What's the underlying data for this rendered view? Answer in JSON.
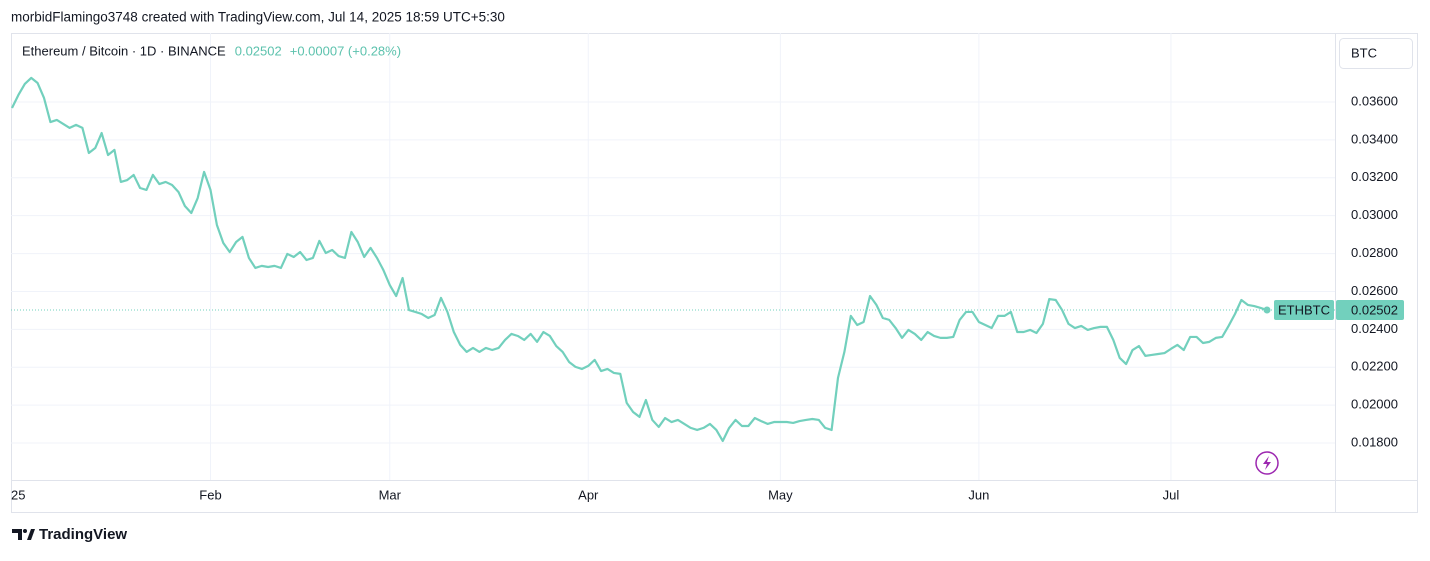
{
  "header": {
    "caption": "morbidFlamingo3748 created with TradingView.com, Jul 14, 2025 18:59 UTC+5:30"
  },
  "footer": {
    "brand": "TradingView"
  },
  "chart_data": {
    "type": "line",
    "title": "Ethereum / Bitcoin · 1D · BINANCE",
    "change": "+0.00007 (+0.28%)",
    "symbol": "ETHBTC",
    "currency": "BTC",
    "color": "#72d0bd",
    "grid": true,
    "categories": [
      "25",
      null,
      null,
      null,
      null,
      null,
      null,
      null,
      null,
      null,
      null,
      null,
      null,
      null,
      null,
      null,
      null,
      null,
      null,
      null,
      null,
      null,
      null,
      null,
      null,
      null,
      null,
      null,
      null,
      null,
      null,
      "Feb",
      null,
      null,
      null,
      null,
      null,
      null,
      null,
      null,
      null,
      null,
      null,
      null,
      null,
      null,
      null,
      null,
      null,
      null,
      null,
      null,
      null,
      null,
      null,
      null,
      null,
      null,
      null,
      "Mar",
      null,
      null,
      null,
      null,
      null,
      null,
      null,
      null,
      null,
      null,
      null,
      null,
      null,
      null,
      null,
      null,
      null,
      null,
      null,
      null,
      null,
      null,
      null,
      null,
      null,
      null,
      null,
      null,
      null,
      null,
      "Apr",
      null,
      null,
      null,
      null,
      null,
      null,
      null,
      null,
      null,
      null,
      null,
      null,
      null,
      null,
      null,
      null,
      null,
      null,
      null,
      null,
      null,
      null,
      null,
      null,
      null,
      null,
      null,
      null,
      null,
      "May",
      null,
      null,
      null,
      null,
      null,
      null,
      null,
      null,
      null,
      null,
      null,
      null,
      null,
      null,
      null,
      null,
      null,
      null,
      null,
      null,
      null,
      null,
      null,
      null,
      null,
      null,
      null,
      null,
      null,
      null,
      "Jun",
      null,
      null,
      null,
      null,
      null,
      null,
      null,
      null,
      null,
      null,
      null,
      null,
      null,
      null,
      null,
      null,
      null,
      null,
      null,
      null,
      null,
      null,
      null,
      null,
      null,
      null,
      null,
      null,
      null,
      "Jul",
      null,
      null,
      null,
      null,
      null,
      null,
      null,
      null,
      null,
      null,
      null,
      null,
      null,
      null,
      null
    ],
    "values": [
      0.03568,
      0.03637,
      0.03695,
      0.03727,
      0.037,
      0.03621,
      0.03494,
      0.03505,
      0.03484,
      0.03463,
      0.03479,
      0.03463,
      0.03331,
      0.03357,
      0.03436,
      0.0332,
      0.03347,
      0.03178,
      0.03188,
      0.03215,
      0.03146,
      0.03136,
      0.03215,
      0.03167,
      0.03178,
      0.03162,
      0.03125,
      0.03051,
      0.03014,
      0.03093,
      0.03231,
      0.03136,
      0.02951,
      0.02856,
      0.02808,
      0.02861,
      0.02888,
      0.02777,
      0.02724,
      0.02735,
      0.02729,
      0.02735,
      0.02724,
      0.02798,
      0.02782,
      0.02808,
      0.02766,
      0.02777,
      0.02867,
      0.02803,
      0.02819,
      0.02787,
      0.02777,
      0.02914,
      0.02861,
      0.02782,
      0.0283,
      0.02777,
      0.02713,
      0.02634,
      0.02576,
      0.02671,
      0.02502,
      0.02492,
      0.02481,
      0.0246,
      0.02476,
      0.02566,
      0.02492,
      0.02386,
      0.02318,
      0.02281,
      0.02302,
      0.02281,
      0.02302,
      0.02291,
      0.02302,
      0.02344,
      0.02376,
      0.02365,
      0.02344,
      0.02376,
      0.02334,
      0.02386,
      0.02365,
      0.02312,
      0.02281,
      0.02228,
      0.02202,
      0.02191,
      0.02207,
      0.02239,
      0.0218,
      0.02191,
      0.0217,
      0.02165,
      0.02012,
      0.01964,
      0.01938,
      0.02027,
      0.01922,
      0.01885,
      0.01932,
      0.01911,
      0.01922,
      0.01901,
      0.0188,
      0.01869,
      0.0188,
      0.01901,
      0.01869,
      0.01811,
      0.0188,
      0.01922,
      0.0189,
      0.0189,
      0.01932,
      0.01916,
      0.01901,
      0.01911,
      0.01911,
      0.01911,
      0.01906,
      0.01916,
      0.01922,
      0.01927,
      0.01922,
      0.0188,
      0.01869,
      0.02144,
      0.02281,
      0.02471,
      0.02423,
      0.02439,
      0.02576,
      0.02529,
      0.0246,
      0.0245,
      0.02407,
      0.02355,
      0.02397,
      0.02376,
      0.02344,
      0.02386,
      0.02365,
      0.02355,
      0.02355,
      0.0236,
      0.0245,
      0.02492,
      0.02492,
      0.02439,
      0.02423,
      0.02407,
      0.02471,
      0.02471,
      0.02492,
      0.02386,
      0.02386,
      0.02397,
      0.02381,
      0.02429,
      0.0256,
      0.02555,
      0.02502,
      0.02429,
      0.02407,
      0.02418,
      0.02397,
      0.02407,
      0.02413,
      0.02413,
      0.02344,
      0.02249,
      0.02217,
      0.02291,
      0.02312,
      0.0226,
      0.02265,
      0.0227,
      0.02275,
      0.02297,
      0.02318,
      0.02291,
      0.0236,
      0.0236,
      0.02328,
      0.02334,
      0.02355,
      0.0236,
      0.02418,
      0.02481,
      0.02555,
      0.02529,
      0.02523,
      0.02513,
      0.02502
    ],
    "ylim": [
      0.01605,
      0.03964
    ],
    "yticks": [
      {
        "value": 0.018,
        "label": "0.01800"
      },
      {
        "value": 0.02,
        "label": "0.02000"
      },
      {
        "value": 0.022,
        "label": "0.02200"
      },
      {
        "value": 0.024,
        "label": "0.02400"
      },
      {
        "value": 0.026,
        "label": "0.02600"
      },
      {
        "value": 0.028,
        "label": "0.02800"
      },
      {
        "value": 0.03,
        "label": "0.03000"
      },
      {
        "value": 0.032,
        "label": "0.03200"
      },
      {
        "value": 0.034,
        "label": "0.03400"
      },
      {
        "value": 0.036,
        "label": "0.03600"
      }
    ]
  }
}
